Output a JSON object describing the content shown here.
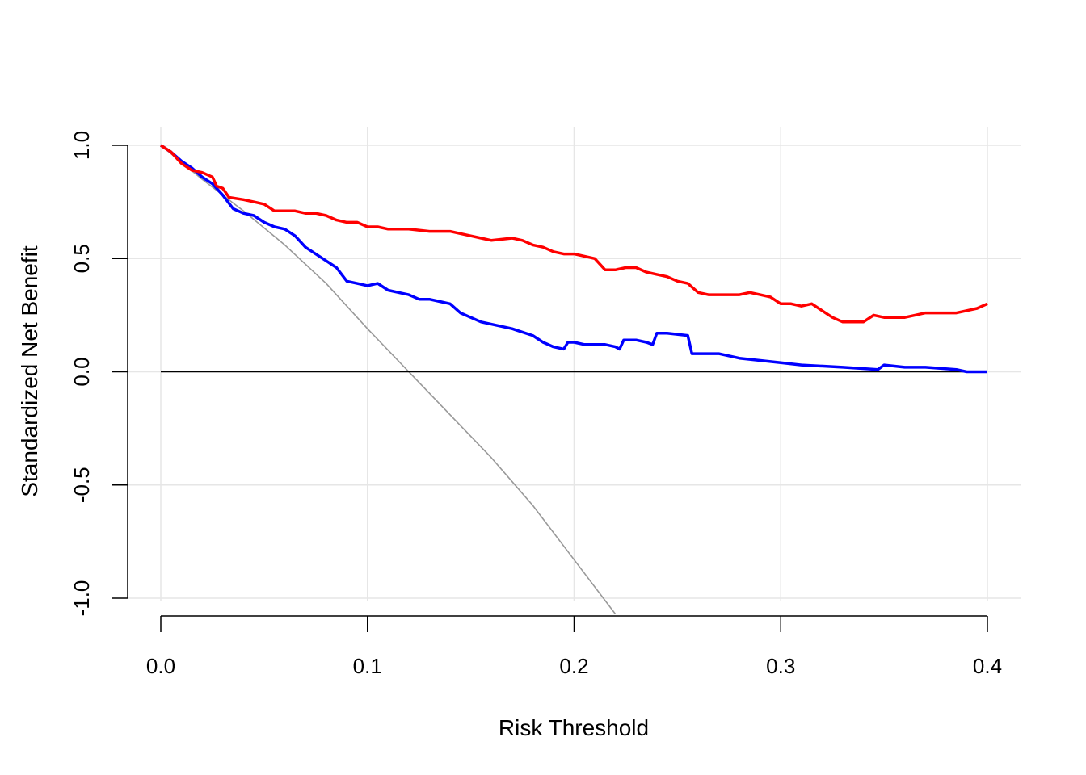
{
  "chart_data": {
    "type": "line",
    "title": "",
    "xlabel": "Risk Threshold",
    "ylabel": "Standardized Net Benefit",
    "xlim": [
      0,
      0.4
    ],
    "ylim": [
      -1.0,
      1.0
    ],
    "grid": true,
    "x_ticks": [
      {
        "value": 0.0,
        "label": "0.0"
      },
      {
        "value": 0.1,
        "label": "0.1"
      },
      {
        "value": 0.2,
        "label": "0.2"
      },
      {
        "value": 0.3,
        "label": "0.3"
      },
      {
        "value": 0.4,
        "label": "0.4"
      }
    ],
    "y_ticks": [
      {
        "value": -1.0,
        "label": "-1.0"
      },
      {
        "value": -0.5,
        "label": "-0.5"
      },
      {
        "value": 0.0,
        "label": "0.0"
      },
      {
        "value": 0.5,
        "label": "0.5"
      },
      {
        "value": 1.0,
        "label": "1.0"
      }
    ],
    "series": [
      {
        "color": "#999999",
        "style": "thin",
        "points": [
          [
            0.0,
            1.0
          ],
          [
            0.02,
            0.85
          ],
          [
            0.04,
            0.71
          ],
          [
            0.06,
            0.56
          ],
          [
            0.08,
            0.39
          ],
          [
            0.1,
            0.19
          ],
          [
            0.12,
            0.0
          ],
          [
            0.14,
            -0.19
          ],
          [
            0.16,
            -0.38
          ],
          [
            0.18,
            -0.59
          ],
          [
            0.2,
            -0.83
          ],
          [
            0.22,
            -1.07
          ]
        ]
      },
      {
        "color": "#000000",
        "style": "thin",
        "points": [
          [
            0.0,
            0.0
          ],
          [
            0.4,
            0.0
          ]
        ]
      },
      {
        "color": "#0000FF",
        "style": "thick",
        "points": [
          [
            0.0,
            1.0
          ],
          [
            0.005,
            0.97
          ],
          [
            0.01,
            0.93
          ],
          [
            0.015,
            0.9
          ],
          [
            0.02,
            0.86
          ],
          [
            0.025,
            0.83
          ],
          [
            0.03,
            0.78
          ],
          [
            0.035,
            0.72
          ],
          [
            0.04,
            0.7
          ],
          [
            0.045,
            0.69
          ],
          [
            0.05,
            0.66
          ],
          [
            0.055,
            0.64
          ],
          [
            0.06,
            0.63
          ],
          [
            0.065,
            0.6
          ],
          [
            0.07,
            0.55
          ],
          [
            0.08,
            0.49
          ],
          [
            0.085,
            0.46
          ],
          [
            0.09,
            0.4
          ],
          [
            0.095,
            0.39
          ],
          [
            0.1,
            0.38
          ],
          [
            0.105,
            0.39
          ],
          [
            0.11,
            0.36
          ],
          [
            0.115,
            0.35
          ],
          [
            0.12,
            0.34
          ],
          [
            0.125,
            0.32
          ],
          [
            0.13,
            0.32
          ],
          [
            0.135,
            0.31
          ],
          [
            0.14,
            0.3
          ],
          [
            0.145,
            0.26
          ],
          [
            0.155,
            0.22
          ],
          [
            0.17,
            0.19
          ],
          [
            0.18,
            0.16
          ],
          [
            0.185,
            0.13
          ],
          [
            0.19,
            0.11
          ],
          [
            0.195,
            0.1
          ],
          [
            0.197,
            0.13
          ],
          [
            0.2,
            0.13
          ],
          [
            0.205,
            0.12
          ],
          [
            0.21,
            0.12
          ],
          [
            0.215,
            0.12
          ],
          [
            0.22,
            0.11
          ],
          [
            0.222,
            0.1
          ],
          [
            0.224,
            0.14
          ],
          [
            0.23,
            0.14
          ],
          [
            0.235,
            0.13
          ],
          [
            0.238,
            0.12
          ],
          [
            0.24,
            0.17
          ],
          [
            0.245,
            0.17
          ],
          [
            0.255,
            0.16
          ],
          [
            0.257,
            0.08
          ],
          [
            0.27,
            0.08
          ],
          [
            0.28,
            0.06
          ],
          [
            0.29,
            0.05
          ],
          [
            0.3,
            0.04
          ],
          [
            0.31,
            0.03
          ],
          [
            0.33,
            0.02
          ],
          [
            0.347,
            0.01
          ],
          [
            0.35,
            0.03
          ],
          [
            0.36,
            0.02
          ],
          [
            0.37,
            0.02
          ],
          [
            0.385,
            0.01
          ],
          [
            0.39,
            0.0
          ],
          [
            0.4,
            0.0
          ]
        ]
      },
      {
        "color": "#FF0000",
        "style": "thick",
        "points": [
          [
            0.0,
            1.0
          ],
          [
            0.005,
            0.97
          ],
          [
            0.01,
            0.92
          ],
          [
            0.015,
            0.89
          ],
          [
            0.02,
            0.88
          ],
          [
            0.025,
            0.86
          ],
          [
            0.027,
            0.82
          ],
          [
            0.03,
            0.81
          ],
          [
            0.033,
            0.77
          ],
          [
            0.04,
            0.76
          ],
          [
            0.045,
            0.75
          ],
          [
            0.05,
            0.74
          ],
          [
            0.055,
            0.71
          ],
          [
            0.06,
            0.71
          ],
          [
            0.065,
            0.71
          ],
          [
            0.07,
            0.7
          ],
          [
            0.075,
            0.7
          ],
          [
            0.08,
            0.69
          ],
          [
            0.085,
            0.67
          ],
          [
            0.09,
            0.66
          ],
          [
            0.095,
            0.66
          ],
          [
            0.1,
            0.64
          ],
          [
            0.105,
            0.64
          ],
          [
            0.11,
            0.63
          ],
          [
            0.12,
            0.63
          ],
          [
            0.13,
            0.62
          ],
          [
            0.14,
            0.62
          ],
          [
            0.15,
            0.6
          ],
          [
            0.155,
            0.59
          ],
          [
            0.16,
            0.58
          ],
          [
            0.17,
            0.59
          ],
          [
            0.175,
            0.58
          ],
          [
            0.18,
            0.56
          ],
          [
            0.185,
            0.55
          ],
          [
            0.19,
            0.53
          ],
          [
            0.195,
            0.52
          ],
          [
            0.2,
            0.52
          ],
          [
            0.21,
            0.5
          ],
          [
            0.215,
            0.45
          ],
          [
            0.22,
            0.45
          ],
          [
            0.225,
            0.46
          ],
          [
            0.23,
            0.46
          ],
          [
            0.235,
            0.44
          ],
          [
            0.24,
            0.43
          ],
          [
            0.245,
            0.42
          ],
          [
            0.25,
            0.4
          ],
          [
            0.255,
            0.39
          ],
          [
            0.26,
            0.35
          ],
          [
            0.265,
            0.34
          ],
          [
            0.27,
            0.34
          ],
          [
            0.275,
            0.34
          ],
          [
            0.28,
            0.34
          ],
          [
            0.285,
            0.35
          ],
          [
            0.29,
            0.34
          ],
          [
            0.295,
            0.33
          ],
          [
            0.3,
            0.3
          ],
          [
            0.305,
            0.3
          ],
          [
            0.31,
            0.29
          ],
          [
            0.315,
            0.3
          ],
          [
            0.32,
            0.27
          ],
          [
            0.325,
            0.24
          ],
          [
            0.33,
            0.22
          ],
          [
            0.335,
            0.22
          ],
          [
            0.34,
            0.22
          ],
          [
            0.345,
            0.25
          ],
          [
            0.35,
            0.24
          ],
          [
            0.355,
            0.24
          ],
          [
            0.36,
            0.24
          ],
          [
            0.365,
            0.25
          ],
          [
            0.37,
            0.26
          ],
          [
            0.375,
            0.26
          ],
          [
            0.38,
            0.26
          ],
          [
            0.385,
            0.26
          ],
          [
            0.39,
            0.27
          ],
          [
            0.395,
            0.28
          ],
          [
            0.4,
            0.3
          ]
        ]
      }
    ]
  }
}
